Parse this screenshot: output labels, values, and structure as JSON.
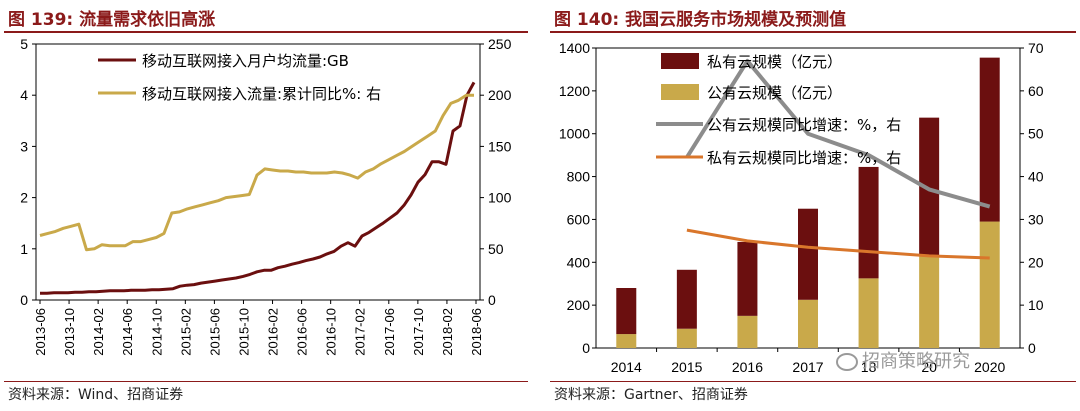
{
  "left": {
    "title": "图 139:  流量需求依旧高涨",
    "source": "资料来源：Wind、招商证券",
    "chart_data": {
      "type": "line",
      "y_left_lim": [
        0,
        5
      ],
      "y_left_ticks": [
        "0",
        "1",
        "2",
        "3",
        "4",
        "5"
      ],
      "y_right_lim": [
        0,
        250
      ],
      "y_right_ticks": [
        "0",
        "50",
        "100",
        "150",
        "200",
        "250"
      ],
      "x_ticks": [
        "2013-06",
        "2013-10",
        "2014-02",
        "2014-06",
        "2014-10",
        "2015-02",
        "2015-06",
        "2015-10",
        "2016-02",
        "2016-06",
        "2016-10",
        "2017-02",
        "2017-06",
        "2017-10",
        "2018-02",
        "2018-06"
      ],
      "series": [
        {
          "name": "移动互联网接入月户均流量:GB",
          "axis": "left",
          "color": "#6B0F0F",
          "values": [
            0.13,
            0.13,
            0.14,
            0.14,
            0.14,
            0.15,
            0.15,
            0.16,
            0.16,
            0.17,
            0.18,
            0.18,
            0.18,
            0.19,
            0.19,
            0.19,
            0.2,
            0.2,
            0.21,
            0.22,
            0.27,
            0.29,
            0.3,
            0.33,
            0.35,
            0.37,
            0.39,
            0.41,
            0.43,
            0.46,
            0.5,
            0.55,
            0.58,
            0.58,
            0.63,
            0.66,
            0.7,
            0.73,
            0.77,
            0.8,
            0.84,
            0.9,
            0.95,
            1.05,
            1.12,
            1.05,
            1.25,
            1.32,
            1.41,
            1.5,
            1.6,
            1.7,
            1.85,
            2.05,
            2.3,
            2.45,
            2.7,
            2.7,
            2.65,
            3.3,
            3.4,
            4.0,
            4.25
          ]
        },
        {
          "name": "移动互联网接入流量:累计同比%:  右",
          "axis": "right",
          "color": "#C9A94A",
          "values": [
            63,
            65,
            67,
            70,
            72,
            74,
            49,
            50,
            54,
            53,
            53,
            53,
            57,
            57,
            59,
            61,
            65,
            85,
            86,
            89,
            91,
            93,
            95,
            97,
            100,
            101,
            102,
            103,
            122,
            128,
            127,
            126,
            126,
            125,
            125,
            124,
            124,
            124,
            125,
            124,
            122,
            119,
            125,
            128,
            133,
            137,
            141,
            145,
            150,
            155,
            160,
            165,
            180,
            192,
            195,
            200,
            200
          ]
        }
      ]
    }
  },
  "right": {
    "title": "图 140:  我国云服务市场规模及预测值",
    "source": "资料来源：Gartner、招商证券",
    "watermark": "招商策略研究",
    "chart_data": {
      "type": "bar",
      "categories": [
        "2014",
        "2015",
        "2016",
        "2017",
        "2018",
        "2019",
        "2020"
      ],
      "x_tick_labels": [
        "2014",
        "2015",
        "2016",
        "2017",
        "18",
        "20",
        "2020"
      ],
      "y_left_lim": [
        0,
        1400
      ],
      "y_left_ticks": [
        "0",
        "200",
        "400",
        "600",
        "800",
        "1000",
        "1200",
        "1400"
      ],
      "y_right_lim": [
        0,
        70
      ],
      "y_right_ticks": [
        "0",
        "10",
        "20",
        "30",
        "40",
        "50",
        "60",
        "70"
      ],
      "series": [
        {
          "name": "私有云规模（亿元）",
          "kind": "bar-stack-top",
          "color": "#6B0F0F",
          "values": [
            215,
            275,
            345,
            425,
            520,
            645,
            765
          ]
        },
        {
          "name": "公有云规模（亿元）",
          "kind": "bar-stack-bottom",
          "color": "#C9A94A",
          "values": [
            65,
            90,
            150,
            225,
            325,
            430,
            590
          ]
        },
        {
          "name": "公有云规模同比增速：%，右",
          "kind": "line",
          "axis": "right",
          "color": "#8C8C8C",
          "values": [
            null,
            44.5,
            67,
            50,
            45,
            37,
            33
          ]
        },
        {
          "name": "私有云规模同比增速：%，右",
          "kind": "line",
          "axis": "right",
          "color": "#D9762B",
          "values": [
            null,
            27.5,
            25,
            23.5,
            22.5,
            21.5,
            21
          ]
        }
      ]
    }
  }
}
